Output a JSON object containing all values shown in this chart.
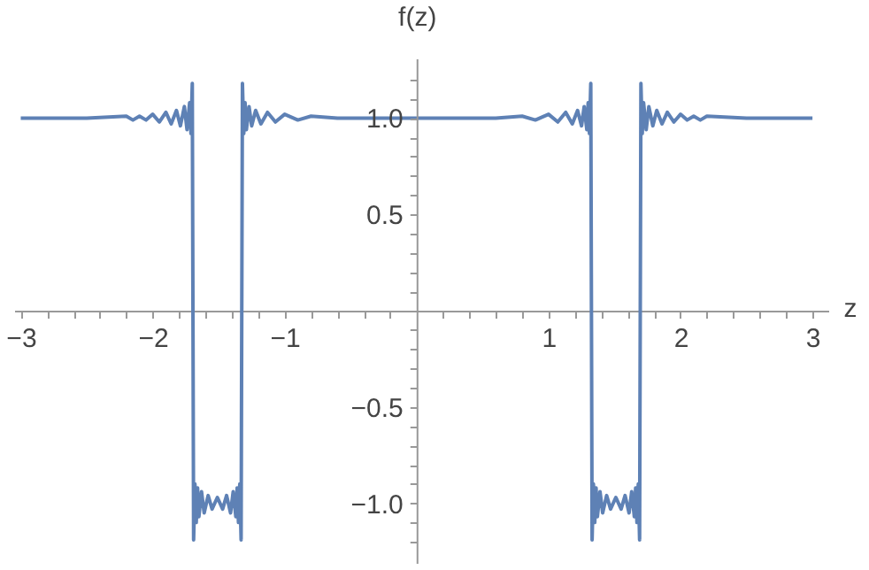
{
  "chart_data": {
    "type": "line",
    "xlabel": "z",
    "ylabel": "f(z)",
    "xlim": [
      -3.05,
      3.12
    ],
    "ylim": [
      -1.31,
      1.31
    ],
    "xticks": [
      {
        "value": -3,
        "label": "−3"
      },
      {
        "value": -2.8,
        "label": null
      },
      {
        "value": -2.6,
        "label": null
      },
      {
        "value": -2.4,
        "label": null
      },
      {
        "value": -2.2,
        "label": null
      },
      {
        "value": -2,
        "label": "−2"
      },
      {
        "value": -1.8,
        "label": null
      },
      {
        "value": -1.6,
        "label": null
      },
      {
        "value": -1.4,
        "label": null
      },
      {
        "value": -1.2,
        "label": null
      },
      {
        "value": -1,
        "label": "−1"
      },
      {
        "value": -0.8,
        "label": null
      },
      {
        "value": -0.6,
        "label": null
      },
      {
        "value": -0.4,
        "label": null
      },
      {
        "value": -0.2,
        "label": null
      },
      {
        "value": 0.2,
        "label": null
      },
      {
        "value": 0.4,
        "label": null
      },
      {
        "value": 0.6,
        "label": null
      },
      {
        "value": 0.8,
        "label": null
      },
      1,
      {
        "value": 1.2,
        "label": null
      },
      {
        "value": 1.4,
        "label": null
      },
      {
        "value": 1.6,
        "label": null
      },
      {
        "value": 1.8,
        "label": null
      },
      2,
      {
        "value": 2.2,
        "label": null
      },
      {
        "value": 2.4,
        "label": null
      },
      {
        "value": 2.6,
        "label": null
      },
      {
        "value": 2.8,
        "label": null
      },
      3
    ],
    "yticks": [
      {
        "value": -1.2,
        "label": null
      },
      {
        "value": -1.1,
        "label": null
      },
      {
        "value": -1.0,
        "label": "−1.0"
      },
      {
        "value": -0.9,
        "label": null
      },
      {
        "value": -0.8,
        "label": null
      },
      {
        "value": -0.7,
        "label": null
      },
      {
        "value": -0.6,
        "label": null
      },
      {
        "value": -0.5,
        "label": "−0.5"
      },
      {
        "value": -0.4,
        "label": null
      },
      {
        "value": -0.3,
        "label": null
      },
      {
        "value": -0.2,
        "label": null
      },
      {
        "value": -0.1,
        "label": null
      },
      {
        "value": 0.1,
        "label": null
      },
      {
        "value": 0.2,
        "label": null
      },
      {
        "value": 0.3,
        "label": null
      },
      {
        "value": 0.4,
        "label": null
      },
      0.5,
      {
        "value": 0.6,
        "label": null
      },
      {
        "value": 0.7,
        "label": null
      },
      {
        "value": 0.8,
        "label": null
      },
      {
        "value": 0.9,
        "label": null
      },
      {
        "value": 1.0,
        "label": "1.0"
      },
      {
        "value": 1.1,
        "label": null
      },
      {
        "value": 1.2,
        "label": null
      }
    ],
    "series": [
      {
        "color": "#5e81b5",
        "x": [
          -3,
          -2.5,
          -2.2,
          -2.15,
          -2.1,
          -2.05,
          -2.0,
          -1.95,
          -1.9,
          -1.86,
          -1.82,
          -1.79,
          -1.76,
          -1.74,
          -1.72,
          -1.71,
          -1.7,
          -1.69,
          -1.68,
          -1.67,
          -1.66,
          -1.65,
          -1.63,
          -1.61,
          -1.58,
          -1.55,
          -1.51,
          -1.47,
          -1.44,
          -1.41,
          -1.39,
          -1.37,
          -1.36,
          -1.35,
          -1.34,
          -1.33,
          -1.32,
          -1.31,
          -1.3,
          -1.29,
          -1.27,
          -1.25,
          -1.22,
          -1.18,
          -1.13,
          -1.07,
          -1.0,
          -0.9,
          -0.8,
          -0.6,
          0,
          0.6,
          0.8,
          0.9,
          1.0,
          1.07,
          1.13,
          1.18,
          1.22,
          1.25,
          1.27,
          1.29,
          1.3,
          1.31,
          1.32,
          1.33,
          1.34,
          1.35,
          1.36,
          1.37,
          1.39,
          1.41,
          1.44,
          1.47,
          1.51,
          1.55,
          1.58,
          1.61,
          1.63,
          1.65,
          1.66,
          1.67,
          1.68,
          1.69,
          1.7,
          1.71,
          1.72,
          1.74,
          1.76,
          1.79,
          1.82,
          1.86,
          1.9,
          1.95,
          2.0,
          2.05,
          2.1,
          2.15,
          2.2,
          2.5,
          3
        ],
        "values": [
          1.0,
          1.0,
          1.01,
          0.99,
          1.01,
          0.99,
          1.02,
          0.98,
          1.03,
          0.97,
          1.04,
          0.96,
          1.06,
          0.94,
          1.08,
          0.92,
          1.18,
          -1.19,
          -0.9,
          -1.1,
          -0.92,
          -1.07,
          -0.94,
          -1.05,
          -0.96,
          -1.03,
          -0.97,
          -1.03,
          -0.96,
          -1.05,
          -0.94,
          -1.07,
          -0.92,
          -1.1,
          -0.9,
          -1.19,
          1.18,
          0.92,
          1.08,
          0.94,
          1.06,
          0.96,
          1.04,
          0.97,
          1.03,
          0.98,
          1.02,
          0.99,
          1.01,
          1.0,
          1.0,
          1.0,
          1.01,
          0.99,
          1.02,
          0.98,
          1.03,
          0.97,
          1.04,
          0.96,
          1.06,
          0.94,
          1.08,
          0.92,
          1.18,
          -1.19,
          -0.9,
          -1.1,
          -0.92,
          -1.07,
          -0.94,
          -1.05,
          -0.96,
          -1.03,
          -0.97,
          -1.03,
          -0.96,
          -1.05,
          -0.94,
          -1.07,
          -0.92,
          -1.1,
          -0.9,
          -1.19,
          1.18,
          0.92,
          1.08,
          0.94,
          1.06,
          0.96,
          1.04,
          0.97,
          1.03,
          0.98,
          1.02,
          0.99,
          1.01,
          0.99,
          1.01,
          1.0,
          1.0
        ]
      }
    ]
  }
}
